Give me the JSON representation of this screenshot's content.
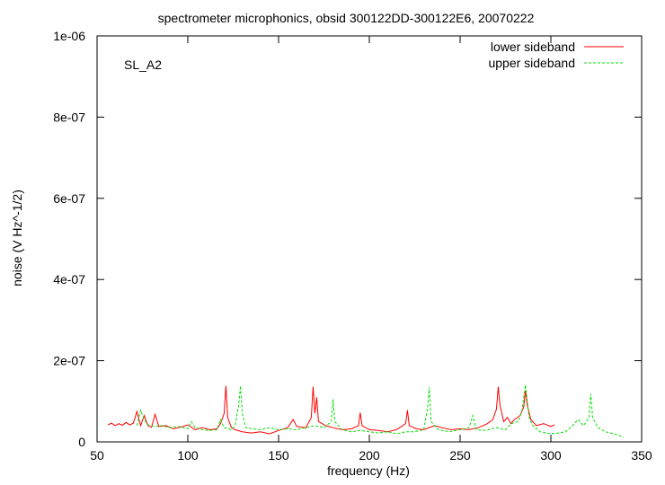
{
  "chart_data": {
    "type": "line",
    "title": "spectrometer microphonics, obsid 300122DD-300122E6, 20070222",
    "xlabel": "frequency (Hz)",
    "ylabel": "noise (V Hz^-1/2)",
    "annotation": "SL_A2",
    "xlim": [
      50,
      350
    ],
    "ylim": [
      0,
      1e-06
    ],
    "x_ticks": [
      50,
      100,
      150,
      200,
      250,
      300,
      350
    ],
    "x_tick_labels": [
      "50",
      "100",
      "150",
      "200",
      "250",
      "300",
      "350"
    ],
    "y_ticks": [
      0,
      2e-07,
      4e-07,
      6e-07,
      8e-07,
      1e-06
    ],
    "y_tick_labels": [
      "0",
      "2e-07",
      "4e-07",
      "6e-07",
      "8e-07",
      "1e-06"
    ],
    "grid": false,
    "legend_position": "top-right",
    "series": [
      {
        "name": "lower sideband",
        "color": "#ff0000",
        "dash": "solid",
        "points": [
          [
            56,
            4.2e-08
          ],
          [
            58,
            4.6e-08
          ],
          [
            60,
            4e-08
          ],
          [
            62,
            4.5e-08
          ],
          [
            64,
            4.1e-08
          ],
          [
            66,
            4.8e-08
          ],
          [
            68,
            4.2e-08
          ],
          [
            70,
            4.6e-08
          ],
          [
            72,
            7.5e-08
          ],
          [
            74,
            4e-08
          ],
          [
            76,
            6.5e-08
          ],
          [
            78,
            4e-08
          ],
          [
            80,
            3.6e-08
          ],
          [
            82,
            6.8e-08
          ],
          [
            84,
            3.8e-08
          ],
          [
            88,
            4e-08
          ],
          [
            92,
            3.2e-08
          ],
          [
            96,
            3.6e-08
          ],
          [
            100,
            4.2e-08
          ],
          [
            104,
            3e-08
          ],
          [
            108,
            3.5e-08
          ],
          [
            112,
            3e-08
          ],
          [
            116,
            3.2e-08
          ],
          [
            118,
            4.5e-08
          ],
          [
            120,
            7e-08
          ],
          [
            121,
            1.38e-07
          ],
          [
            122,
            6e-08
          ],
          [
            124,
            3.5e-08
          ],
          [
            126,
            3e-08
          ],
          [
            130,
            2.5e-08
          ],
          [
            135,
            2.2e-08
          ],
          [
            140,
            2.5e-08
          ],
          [
            145,
            2e-08
          ],
          [
            150,
            2.8e-08
          ],
          [
            155,
            3.5e-08
          ],
          [
            158,
            5.5e-08
          ],
          [
            160,
            3.8e-08
          ],
          [
            165,
            3.5e-08
          ],
          [
            168,
            6e-08
          ],
          [
            169,
            1.36e-07
          ],
          [
            170,
            7e-08
          ],
          [
            171,
            1.1e-07
          ],
          [
            172,
            5e-08
          ],
          [
            176,
            4e-08
          ],
          [
            180,
            3.5e-08
          ],
          [
            185,
            3e-08
          ],
          [
            190,
            3.2e-08
          ],
          [
            194,
            4e-08
          ],
          [
            195,
            7.2e-08
          ],
          [
            196,
            4e-08
          ],
          [
            200,
            3e-08
          ],
          [
            205,
            2.8e-08
          ],
          [
            210,
            2.5e-08
          ],
          [
            215,
            3e-08
          ],
          [
            220,
            4.5e-08
          ],
          [
            221,
            7.8e-08
          ],
          [
            222,
            4e-08
          ],
          [
            226,
            3.2e-08
          ],
          [
            230,
            3e-08
          ],
          [
            236,
            4e-08
          ],
          [
            240,
            3.5e-08
          ],
          [
            245,
            3e-08
          ],
          [
            250,
            3.2e-08
          ],
          [
            255,
            3e-08
          ],
          [
            260,
            3.5e-08
          ],
          [
            265,
            4.5e-08
          ],
          [
            268,
            5.5e-08
          ],
          [
            270,
            8e-08
          ],
          [
            271,
            1.36e-07
          ],
          [
            272,
            9e-08
          ],
          [
            274,
            5e-08
          ],
          [
            276,
            6e-08
          ],
          [
            278,
            4.5e-08
          ],
          [
            280,
            5.5e-08
          ],
          [
            283,
            6.5e-08
          ],
          [
            285,
            8.5e-08
          ],
          [
            286,
            1.26e-07
          ],
          [
            287,
            9e-08
          ],
          [
            289,
            5.5e-08
          ],
          [
            292,
            4e-08
          ],
          [
            296,
            4.5e-08
          ],
          [
            300,
            3.8e-08
          ],
          [
            302,
            4.2e-08
          ]
        ]
      },
      {
        "name": "upper sideband",
        "color": "#00dd00",
        "dash": "dashed",
        "points": [
          [
            72,
            4e-08
          ],
          [
            74,
            7.8e-08
          ],
          [
            76,
            5.5e-08
          ],
          [
            78,
            4.2e-08
          ],
          [
            82,
            3.8e-08
          ],
          [
            86,
            4e-08
          ],
          [
            90,
            3.5e-08
          ],
          [
            95,
            3.8e-08
          ],
          [
            100,
            3.2e-08
          ],
          [
            102,
            5e-08
          ],
          [
            104,
            3.5e-08
          ],
          [
            108,
            3e-08
          ],
          [
            112,
            2.8e-08
          ],
          [
            116,
            3e-08
          ],
          [
            118,
            5.5e-08
          ],
          [
            120,
            3.5e-08
          ],
          [
            124,
            3e-08
          ],
          [
            126,
            4e-08
          ],
          [
            128,
            9e-08
          ],
          [
            129,
            1.38e-07
          ],
          [
            130,
            7e-08
          ],
          [
            132,
            3.5e-08
          ],
          [
            136,
            3.2e-08
          ],
          [
            140,
            3e-08
          ],
          [
            145,
            3.5e-08
          ],
          [
            150,
            3e-08
          ],
          [
            155,
            3.2e-08
          ],
          [
            160,
            3e-08
          ],
          [
            165,
            3.5e-08
          ],
          [
            170,
            4e-08
          ],
          [
            175,
            3.5e-08
          ],
          [
            179,
            5e-08
          ],
          [
            180,
            1.05e-07
          ],
          [
            181,
            5e-08
          ],
          [
            185,
            3e-08
          ],
          [
            190,
            2.5e-08
          ],
          [
            195,
            2.8e-08
          ],
          [
            200,
            2.5e-08
          ],
          [
            205,
            2.2e-08
          ],
          [
            210,
            2.5e-08
          ],
          [
            215,
            2e-08
          ],
          [
            220,
            2.5e-08
          ],
          [
            225,
            2.5e-08
          ],
          [
            230,
            3e-08
          ],
          [
            232,
            8e-08
          ],
          [
            233,
            1.34e-07
          ],
          [
            234,
            5e-08
          ],
          [
            238,
            3e-08
          ],
          [
            244,
            2.5e-08
          ],
          [
            250,
            3e-08
          ],
          [
            255,
            3.5e-08
          ],
          [
            257,
            6.5e-08
          ],
          [
            259,
            3e-08
          ],
          [
            264,
            2.8e-08
          ],
          [
            270,
            3.5e-08
          ],
          [
            275,
            3e-08
          ],
          [
            278,
            4.5e-08
          ],
          [
            282,
            5e-08
          ],
          [
            284,
            7.5e-08
          ],
          [
            285,
            1.08e-07
          ],
          [
            286,
            1.4e-07
          ],
          [
            288,
            6e-08
          ],
          [
            290,
            4e-08
          ],
          [
            294,
            2.5e-08
          ],
          [
            300,
            2e-08
          ],
          [
            304,
            2.2e-08
          ],
          [
            308,
            2.5e-08
          ],
          [
            312,
            4e-08
          ],
          [
            315,
            5.5e-08
          ],
          [
            318,
            4e-08
          ],
          [
            321,
            6e-08
          ],
          [
            322,
            1.18e-07
          ],
          [
            323,
            6e-08
          ],
          [
            326,
            3.5e-08
          ],
          [
            330,
            2.5e-08
          ],
          [
            335,
            2e-08
          ],
          [
            338,
            1.5e-08
          ],
          [
            340,
            1.2e-08
          ]
        ]
      }
    ]
  }
}
